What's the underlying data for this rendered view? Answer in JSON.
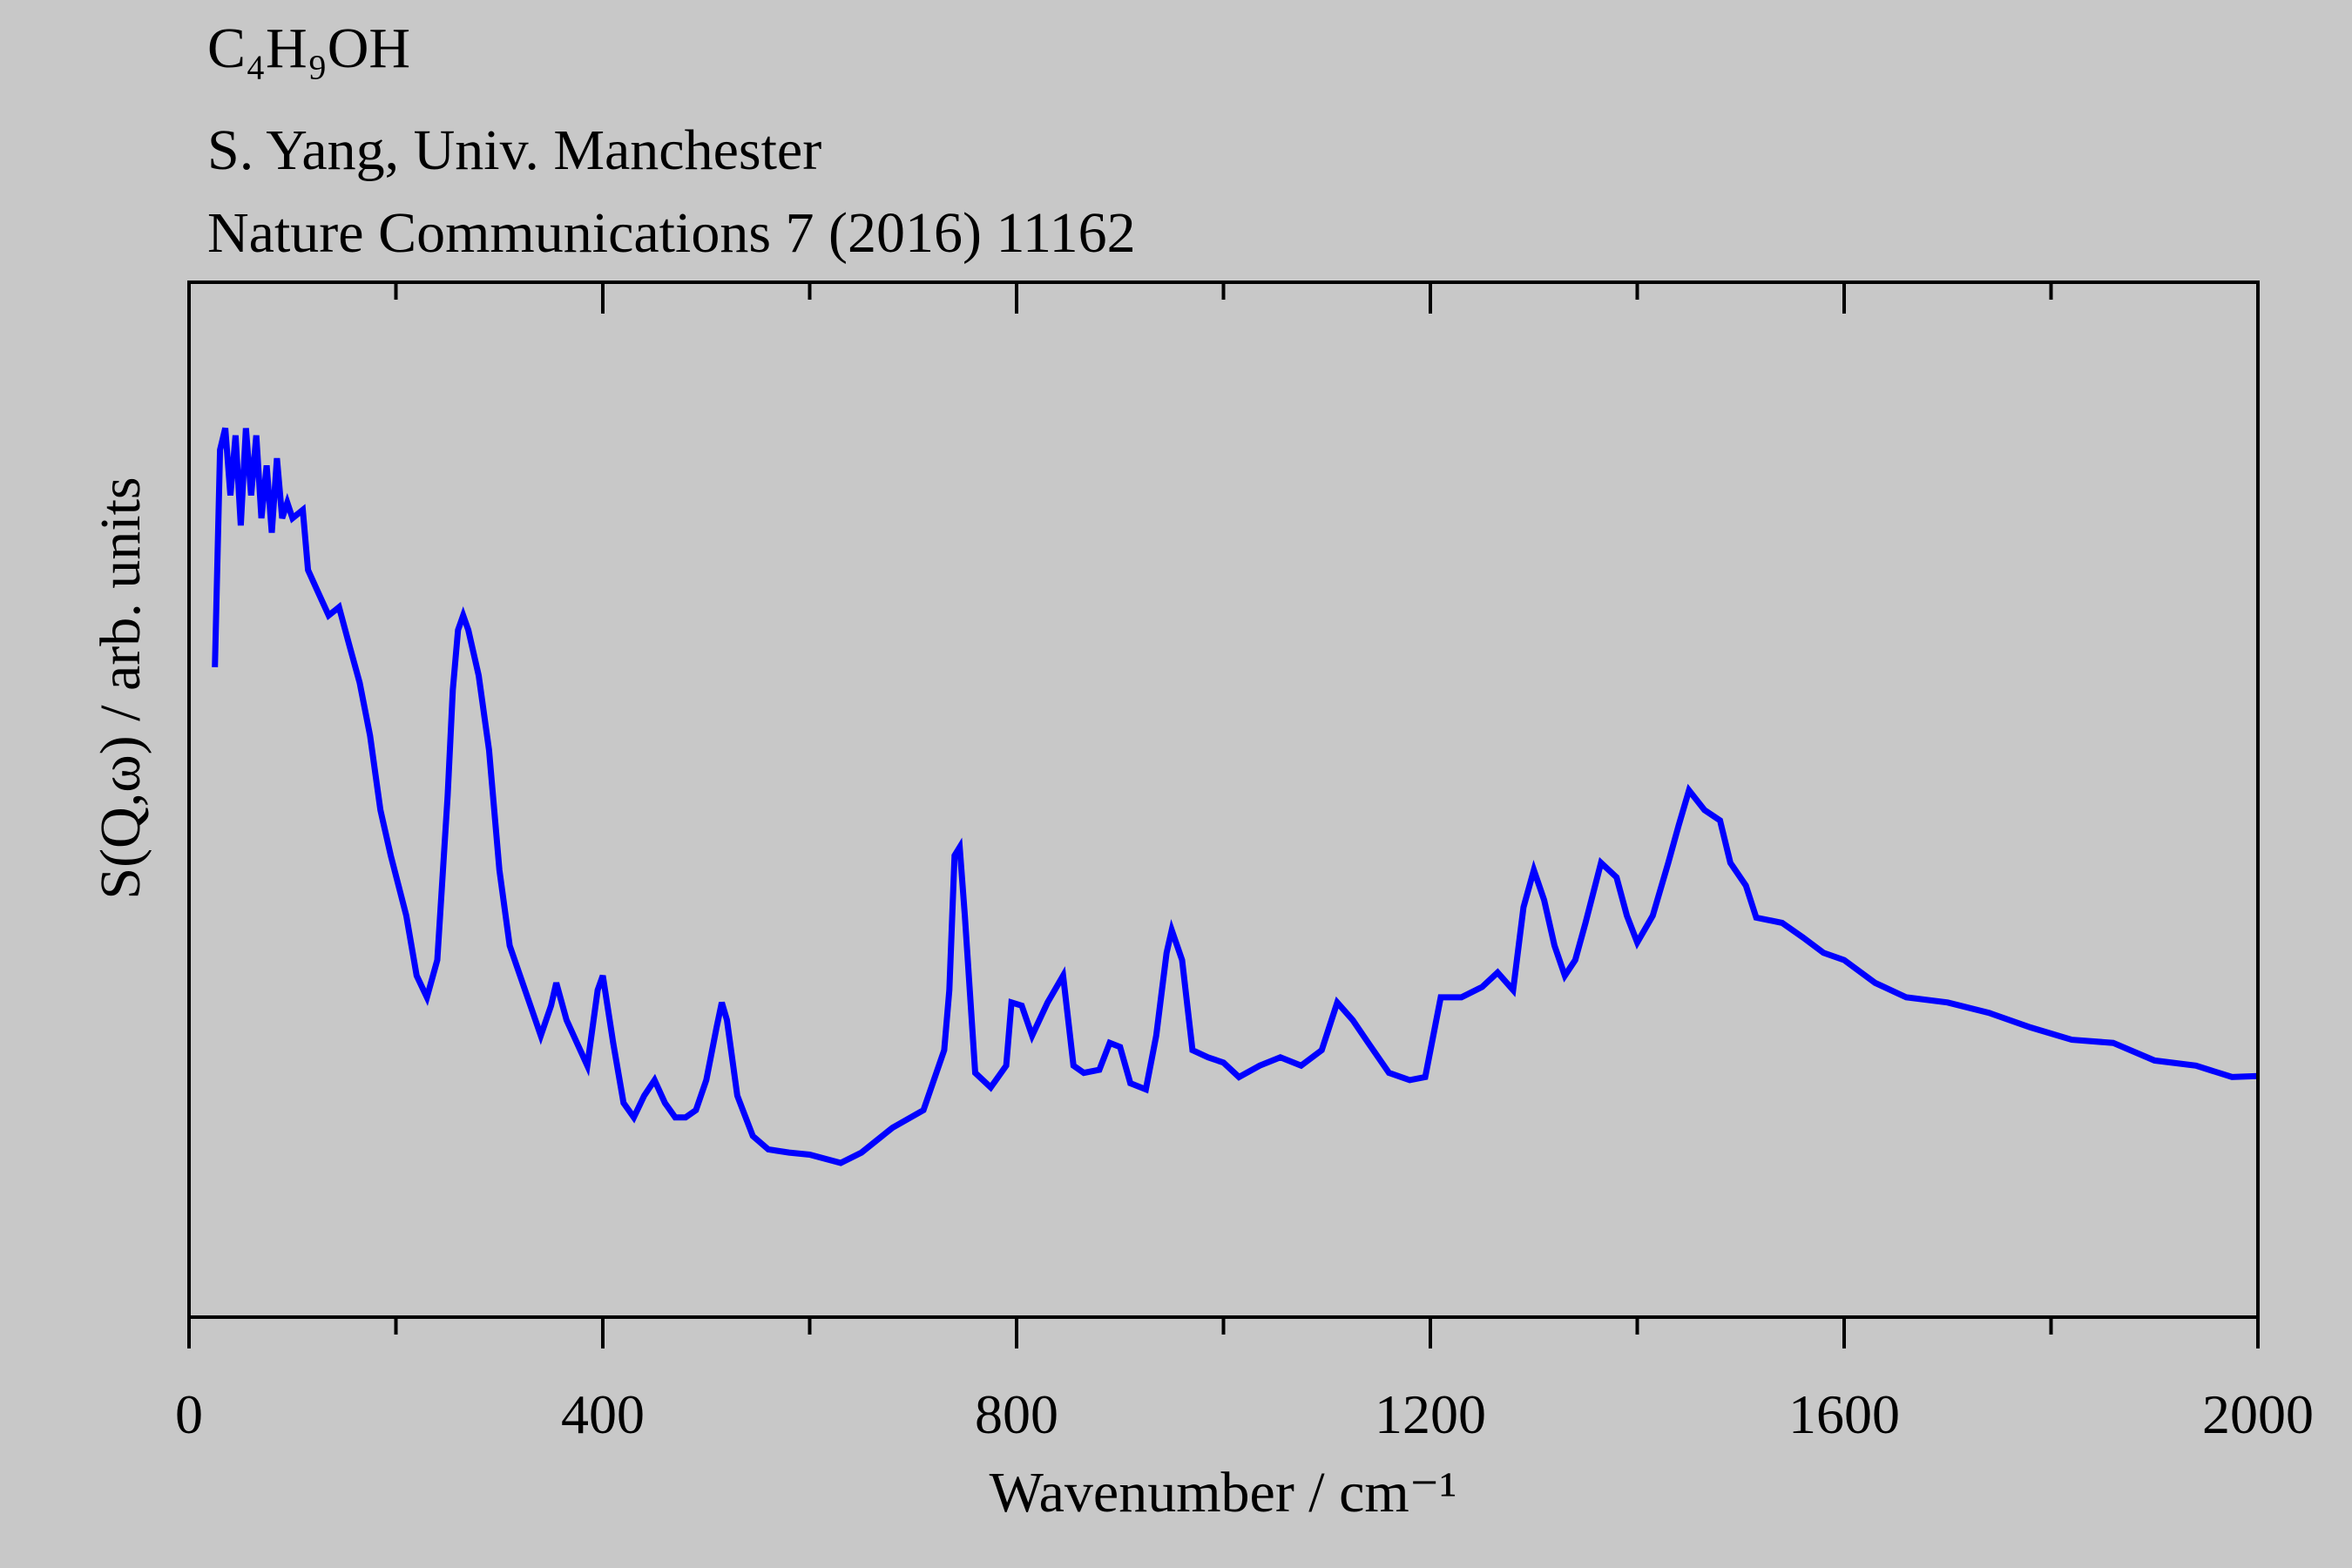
{
  "chart_data": {
    "type": "line",
    "title_lines": [
      "C₄H₉OH",
      "S. Yang, Univ. Manchester",
      "Nature Communications 7 (2016) 11162"
    ],
    "xlabel": "Wavenumber / cm⁻¹",
    "ylabel": "S(Q,ω) / arb. units",
    "xlim": [
      0,
      2000
    ],
    "ylim": [
      0,
      1
    ],
    "xticks": [
      0,
      400,
      800,
      1200,
      1600,
      2000
    ],
    "xminorticks": [
      200,
      600,
      1000,
      1400,
      1800
    ],
    "x": [
      25,
      30,
      35,
      40,
      45,
      50,
      55,
      60,
      65,
      70,
      75,
      80,
      85,
      90,
      95,
      100,
      110,
      115,
      125,
      135,
      145,
      155,
      165,
      175,
      185,
      195,
      210,
      220,
      230,
      240,
      250,
      255,
      260,
      265,
      270,
      280,
      290,
      300,
      310,
      320,
      330,
      340,
      350,
      355,
      365,
      375,
      385,
      395,
      400,
      410,
      420,
      430,
      440,
      450,
      460,
      470,
      480,
      490,
      500,
      510,
      515,
      520,
      530,
      545,
      560,
      580,
      600,
      630,
      650,
      680,
      710,
      730,
      735,
      740,
      745,
      750,
      760,
      775,
      790,
      795,
      805,
      815,
      830,
      845,
      855,
      865,
      880,
      890,
      900,
      910,
      925,
      935,
      945,
      950,
      960,
      970,
      985,
      1000,
      1015,
      1035,
      1055,
      1075,
      1095,
      1110,
      1125,
      1140,
      1160,
      1180,
      1195,
      1210,
      1230,
      1250,
      1265,
      1280,
      1290,
      1300,
      1310,
      1320,
      1330,
      1340,
      1350,
      1365,
      1380,
      1390,
      1400,
      1415,
      1430,
      1440,
      1450,
      1465,
      1480,
      1490,
      1505,
      1515,
      1540,
      1560,
      1580,
      1600,
      1630,
      1660,
      1700,
      1740,
      1780,
      1820,
      1860,
      1900,
      1940,
      1975,
      2000
    ],
    "series": [
      {
        "color": "#0000ff",
        "values": [
          0.628,
          0.838,
          0.859,
          0.794,
          0.852,
          0.765,
          0.859,
          0.794,
          0.852,
          0.772,
          0.823,
          0.758,
          0.83,
          0.772,
          0.787,
          0.772,
          0.78,
          0.722,
          0.7,
          0.678,
          0.686,
          0.649,
          0.613,
          0.562,
          0.49,
          0.446,
          0.388,
          0.33,
          0.309,
          0.345,
          0.504,
          0.606,
          0.664,
          0.678,
          0.664,
          0.62,
          0.548,
          0.432,
          0.359,
          0.33,
          0.301,
          0.272,
          0.301,
          0.323,
          0.287,
          0.265,
          0.243,
          0.316,
          0.33,
          0.265,
          0.207,
          0.193,
          0.214,
          0.229,
          0.207,
          0.193,
          0.193,
          0.2,
          0.229,
          0.28,
          0.304,
          0.287,
          0.214,
          0.175,
          0.162,
          0.159,
          0.157,
          0.149,
          0.159,
          0.183,
          0.2,
          0.258,
          0.316,
          0.446,
          0.454,
          0.388,
          0.236,
          0.222,
          0.243,
          0.304,
          0.301,
          0.272,
          0.304,
          0.33,
          0.243,
          0.236,
          0.239,
          0.265,
          0.261,
          0.226,
          0.22,
          0.272,
          0.352,
          0.374,
          0.345,
          0.258,
          0.251,
          0.246,
          0.232,
          0.243,
          0.251,
          0.243,
          0.258,
          0.304,
          0.287,
          0.265,
          0.236,
          0.229,
          0.232,
          0.309,
          0.309,
          0.319,
          0.333,
          0.316,
          0.396,
          0.432,
          0.403,
          0.359,
          0.33,
          0.345,
          0.381,
          0.439,
          0.425,
          0.388,
          0.362,
          0.388,
          0.439,
          0.475,
          0.509,
          0.49,
          0.48,
          0.439,
          0.417,
          0.386,
          0.381,
          0.367,
          0.352,
          0.345,
          0.323,
          0.309,
          0.304,
          0.294,
          0.28,
          0.268,
          0.265,
          0.248,
          0.243,
          0.232,
          0.233
        ]
      }
    ]
  }
}
